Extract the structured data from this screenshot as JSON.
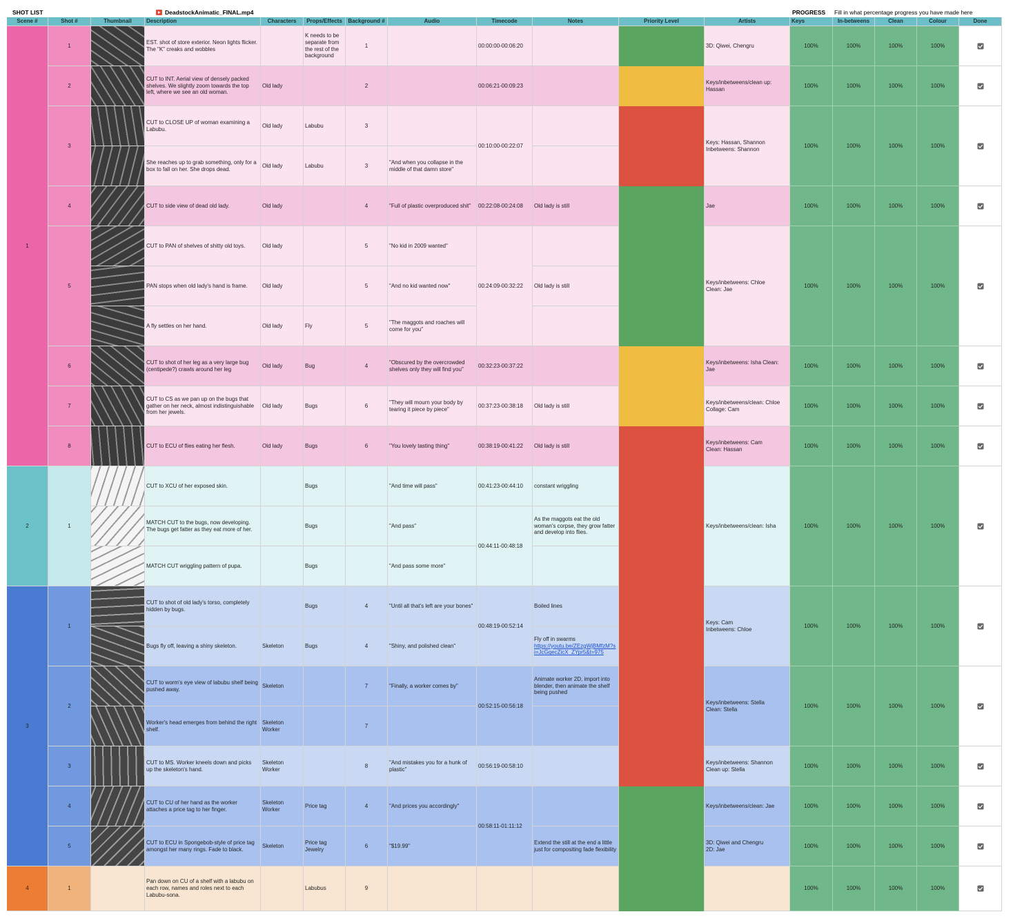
{
  "header": {
    "title": "SHOT LIST",
    "file": "DeadstockAnimatic_FINAL.mp4",
    "progress": "PROGRESS",
    "progress_note": "Fill in what percentage progress you have made here"
  },
  "columns": [
    "Scene #",
    "Shot #",
    "Thumbnail",
    "Description",
    "Characters",
    "Props/Effects",
    "Background #",
    "Audio",
    "Timecode",
    "Notes",
    "Priority Level",
    "Artists",
    "Keys",
    "In-betweens",
    "Clean",
    "Colour",
    "Done"
  ],
  "scene_colors": [
    [
      "#ec65a8",
      "#f08dbe"
    ],
    [
      "#6bc3c9",
      "#c6e9ec"
    ],
    [
      "#4a7bd3",
      "#7199e0"
    ],
    [
      "#ee7d34",
      "#efb37b"
    ]
  ],
  "rows": [
    {
      "s": "1",
      "h": "1",
      "fill": "#fce4ef",
      "d": "EST. shot of store exterior. Neon lights flicker. The \"K\" creaks and wobbles",
      "p": "K needs to be separate from the rest of the background",
      "b": "1",
      "t": "00:00:00-00:06:20",
      "pr": "#5aa660",
      "ar": "3D: Qiwei, Chengru",
      "k": "100%",
      "ib": "100%",
      "cl": "100%",
      "co": "100%",
      "done": true
    },
    {
      "s": null,
      "h": "2",
      "fill": "#f5c6df",
      "d": "CUT to INT. Aerial view of densely packed shelves. We slightly zoom towards the top left, where we see an old woman.",
      "c": "Old lady",
      "b": "2",
      "t": "00:06:21-00:09:23",
      "pr": "#f1bc42",
      "ar": "Keys/inbetweens/clean up: Hassan",
      "k": "100%",
      "ib": "100%",
      "cl": "100%",
      "co": "100%",
      "done": true
    },
    {
      "s": null,
      "h": "3",
      "fill": "#fce4ef",
      "d": "CUT to CLOSE UP of woman examining a Labubu.",
      "c": "Old lady",
      "p": "Labubu",
      "b": "3",
      "t": "00:10:00-00:22:07",
      "pr": "#dc5140",
      "ar": "Keys: Hassan, Shannon\nInbetweens: Shannon",
      "k": "100%",
      "ib": "100%",
      "cl": "100%",
      "co": "100%",
      "done": true
    },
    {
      "s": null,
      "h": null,
      "fill": "#fce4ef",
      "d": "She reaches up to grab something, only for a box to fall on her. She drops dead.",
      "c": "Old lady",
      "p": "Labubu",
      "b": "3",
      "a": "\"And when you collapse in the middle of that damn store\"",
      "t": null,
      "pr": null,
      "ar": null,
      "k": null,
      "ib": null,
      "cl": null,
      "co": null,
      "done": null
    },
    {
      "s": null,
      "h": "4",
      "fill": "#f5c6df",
      "d": "CUT to side view of dead old lady.",
      "c": "Old lady",
      "b": "4",
      "a": "\"Full of plastic overproduced shit\"",
      "t": "00:22:08-00:24:08",
      "n": "Old lady is still",
      "pr": "#5aa660",
      "ar": "Jae",
      "k": "100%",
      "ib": "100%",
      "cl": "100%",
      "co": "100%",
      "done": true
    },
    {
      "s": null,
      "h": "5",
      "fill": "#fce4ef",
      "d": "CUT to PAN of shelves of shitty old toys.",
      "c": "Old lady",
      "b": "5",
      "a": "\"No kid in 2009 wanted\"",
      "t": "00:24:09-00:32:22",
      "pr": "#5aa660",
      "ar": "Keys/inbetweens: Chloe\nClean: Jae",
      "k": "100%",
      "ib": "100%",
      "cl": "100%",
      "co": "100%",
      "done": true
    },
    {
      "s": null,
      "h": null,
      "fill": "#fce4ef",
      "d": "PAN stops when old lady's hand is frame.",
      "c": "Old lady",
      "b": "5",
      "a": "\"And no kid wanted now\"",
      "t": null,
      "n": "Old lady is still",
      "pr": null,
      "ar": null,
      "k": null,
      "ib": null,
      "cl": null,
      "co": null,
      "done": null
    },
    {
      "s": null,
      "h": null,
      "fill": "#fce4ef",
      "d": "A fly settles on her hand.",
      "c": "Old lady",
      "p": "Fly",
      "b": "5",
      "a": "\"The maggots and roaches will come for you\"",
      "t": null,
      "pr": null,
      "ar": null,
      "k": null,
      "ib": null,
      "cl": null,
      "co": null,
      "done": null
    },
    {
      "s": null,
      "h": "6",
      "fill": "#f5c6df",
      "d": "CUT to shot of her leg as a very large bug (centipede?) crawls around her leg",
      "c": "Old lady",
      "p": "Bug",
      "b": "4",
      "a": "\"Obscured by the overcrowded shelves only they will find you\"",
      "t": "00:32:23-00:37:22",
      "pr": "#f1bc42",
      "ar": "Keys/inbetweens: Isha Clean: Jae",
      "k": "100%",
      "ib": "100%",
      "cl": "100%",
      "co": "100%",
      "done": true
    },
    {
      "s": null,
      "h": "7",
      "fill": "#fce4ef",
      "d": "CUT to CS as we pan up on the bugs that gather on her neck, almost indistinguishable from her jewels.",
      "c": "Old lady",
      "p": "Bugs",
      "b": "6",
      "a": "\"They will mourn your body by tearing it piece by piece\"",
      "t": "00:37:23-00:38:18",
      "n": "Old lady is still",
      "pr": "#f1bc42",
      "ar": "Keys/inbetweens/clean: Chloe\nCollage: Cam",
      "k": "100%",
      "ib": "100%",
      "cl": "100%",
      "co": "100%",
      "done": true
    },
    {
      "s": null,
      "h": "8",
      "fill": "#f5c6df",
      "d": "CUT to ECU of flies eating her flesh.",
      "c": "Old lady",
      "p": "Bugs",
      "b": "6",
      "a": "\"You lovely tasting thing\"",
      "t": "00:38:19-00:41:22",
      "n": "Old lady is still",
      "pr": "#dc5140",
      "ar": "Keys/inbetweens: Cam\nClean: Hassan",
      "k": "100%",
      "ib": "100%",
      "cl": "100%",
      "co": "100%",
      "done": true
    },
    {
      "s": "2",
      "h": "1",
      "fill": "#e0f4f6",
      "d": "CUT to XCU of her exposed skin.",
      "p": "Bugs",
      "a": "\"And time will pass\"",
      "t": "00:41:23-00:44:10",
      "n": "constant wriggling",
      "pr": "#dc5140",
      "ar": "Keys/inbetweens/clean: Isha",
      "k": "100%",
      "ib": "100%",
      "cl": "100%",
      "co": "100%",
      "done": true
    },
    {
      "s": null,
      "h": null,
      "fill": "#e0f4f6",
      "d": "MATCH CUT to the bugs, now developing. The bugs get fatter as they eat more of her.",
      "p": "Bugs",
      "a": "\"And pass\"",
      "t": "00:44:11-00:48:18",
      "n": "As the maggots eat the old woman's corpse, they grow fatter and develop into flies.",
      "pr": null,
      "ar": null,
      "k": null,
      "ib": null,
      "cl": null,
      "co": null,
      "done": null
    },
    {
      "s": null,
      "h": null,
      "fill": "#e0f4f6",
      "d": "MATCH CUT wriggling pattern of pupa.",
      "p": "Bugs",
      "a": "\"And pass some more\"",
      "t": null,
      "pr": null,
      "ar": null,
      "k": null,
      "ib": null,
      "cl": null,
      "co": null,
      "done": null
    },
    {
      "s": "3",
      "h": "1",
      "fill": "#c9d9f4",
      "d": "CUT to shot of old lady's torso, completely hidden by bugs.",
      "p": "Bugs",
      "b": "4",
      "a": "\"Until all that's left are your bones\"",
      "t": "00:48:19-00:52:14",
      "n": "Boiled lines",
      "pr": "#dc5140",
      "ar": "Keys: Cam\nInbetweens: Chloe",
      "k": "100%",
      "ib": "100%",
      "cl": "100%",
      "co": "100%",
      "done": true
    },
    {
      "s": null,
      "h": null,
      "fill": "#c9d9f4",
      "d": "Bugs fly off, leaving a shiny skeleton.",
      "c": "Skeleton",
      "p": "Bugs",
      "b": "4",
      "a": "\"Shiny, and polished clean\"",
      "t": null,
      "n": "Fly off in swarms",
      "nl": "https://youtu.be/ZEzgWjBMfzM?si=JcGqecZicX_ZYpr5&t=975",
      "pr": null,
      "ar": null,
      "k": null,
      "ib": null,
      "cl": null,
      "co": null,
      "done": null
    },
    {
      "s": null,
      "h": "2",
      "fill": "#a9c1ee",
      "d": "CUT to worm's eye view of labubu shelf being pushed away.",
      "c": "Skeleton",
      "b": "7",
      "a": "\"Finally, a worker comes by\"",
      "t": "00:52:15-00:56:18",
      "n": "Animate worker 2D, import into blender, then animate the shelf being pushed",
      "pr": "#dc5140",
      "ar": "Keys/inbetweens: Stella\nClean: Stella",
      "k": "100%",
      "ib": "100%",
      "cl": "100%",
      "co": "100%",
      "done": true
    },
    {
      "s": null,
      "h": null,
      "fill": "#a9c1ee",
      "d": "Worker's head emerges from behind the right shelf.",
      "c": "Skeleton\nWorker",
      "b": "7",
      "t": null,
      "pr": null,
      "ar": null,
      "k": null,
      "ib": null,
      "cl": null,
      "co": null,
      "done": null
    },
    {
      "s": null,
      "h": "3",
      "fill": "#c9d9f4",
      "d": "CUT to MS. Worker kneels down and picks up the skeleton's hand.",
      "c": "Skeleton\nWorker",
      "b": "8",
      "a": "\"And mistakes you for a hunk of plastic\"",
      "t": "00:56:19-00:58:10",
      "pr": "#dc5140",
      "ar": "Keys/inbetweens: Shannon\nClean up: Stella",
      "k": "100%",
      "ib": "100%",
      "cl": "100%",
      "co": "100%",
      "done": true
    },
    {
      "s": null,
      "h": "4",
      "fill": "#a9c1ee",
      "d": "CUT to CU of her hand as the worker attaches a price tag to her finger.",
      "c": "Skeleton\nWorker",
      "p": "Price tag",
      "b": "4",
      "a": "\"And prices you accordingly\"",
      "t": "00:58:11-01:11:12",
      "pr": "#5aa660",
      "ar": "Keys/inbetweens/clean: Jae",
      "k": "100%",
      "ib": "100%",
      "cl": "100%",
      "co": "100%",
      "done": true
    },
    {
      "s": null,
      "h": "5",
      "fill": "#a9c1ee",
      "d": "CUT to ECU in Spongebob-style of price tag amongst her many rings. Fade to black.",
      "c": "Skeleton",
      "p": "Price tag\nJewelry",
      "b": "6",
      "a": "\"$19.99\"",
      "t": null,
      "n": "Extend the still at the end a little just for compositing fade flexibility",
      "pr": "#5aa660",
      "ar": "3D: Qiwei and Chengru\n2D: Jae",
      "k": "100%",
      "ib": "100%",
      "cl": "100%",
      "co": "100%",
      "done": true
    },
    {
      "s": "4",
      "h": "1",
      "fill": "#f8e6d2",
      "d": "Pan down on CU of a shelf with a labubu on each row, names and roles next to each Labubu-sona.",
      "p": "Labubus",
      "b": "9",
      "pr": "#5aa660",
      "k": "100%",
      "ib": "100%",
      "cl": "100%",
      "co": "100%",
      "done": true
    }
  ]
}
